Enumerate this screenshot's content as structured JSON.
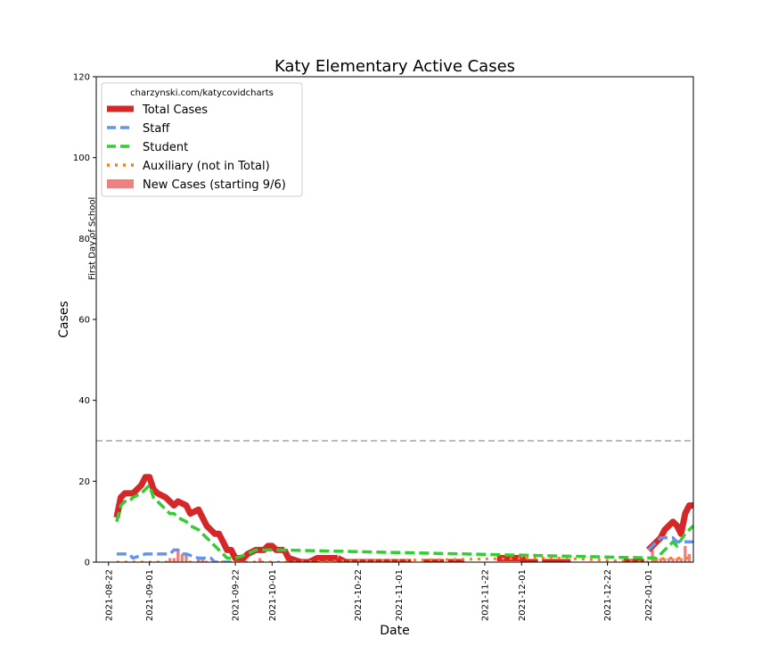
{
  "chart_data": {
    "type": "line",
    "title": "Katy Elementary Active Cases",
    "xlabel": "Date",
    "ylabel": "Cases",
    "ylim": [
      0,
      120
    ],
    "yticks": [
      0,
      20,
      40,
      60,
      80,
      100,
      120
    ],
    "xlim": [
      "2021-08-19",
      "2022-01-12"
    ],
    "xticks": [
      "2021-08-22",
      "2021-09-01",
      "2021-09-22",
      "2021-10-01",
      "2021-10-22",
      "2021-11-01",
      "2021-11-22",
      "2021-12-01",
      "2021-12-22",
      "2022-01-01"
    ],
    "legend_placement": "upper-left",
    "legend_source_text": "charzynski.com/katycovidcharts",
    "reference_lines": [
      {
        "orientation": "vertical",
        "x": "2021-08-18",
        "label": "First Day of School",
        "color": "#bbbbbb"
      },
      {
        "orientation": "horizontal",
        "y": 30,
        "label": "",
        "color": "#bbbbbb"
      }
    ],
    "series": [
      {
        "name": "Total Cases",
        "style": "solid",
        "color": "#d62728",
        "x": [
          "2021-08-24",
          "2021-08-25",
          "2021-08-26",
          "2021-08-27",
          "2021-08-28",
          "2021-08-30",
          "2021-08-31",
          "2021-09-01",
          "2021-09-02",
          "2021-09-03",
          "2021-09-05",
          "2021-09-06",
          "2021-09-07",
          "2021-09-08",
          "2021-09-10",
          "2021-09-11",
          "2021-09-13",
          "2021-09-14",
          "2021-09-15",
          "2021-09-16",
          "2021-09-17",
          "2021-09-18",
          "2021-09-19",
          "2021-09-20",
          "2021-09-21",
          "2021-09-22",
          "2021-09-23",
          "2021-09-24",
          "2021-09-25",
          "2021-09-27",
          "2021-09-28",
          "2021-09-29",
          "2021-09-30",
          "2021-10-01",
          "2021-10-02",
          "2021-10-03",
          "2021-10-04"
        ],
        "values": [
          11,
          16,
          17,
          17,
          17,
          19,
          21,
          21,
          18,
          17,
          16,
          15,
          14,
          15,
          14,
          12,
          13,
          11,
          9,
          8,
          7,
          7,
          5,
          3,
          3,
          1,
          1,
          1,
          2,
          3,
          3,
          3,
          4,
          4,
          3,
          3,
          3
        ],
        "segments": [
          {
            "x": [
              "2021-10-04",
              "2021-10-05",
              "2021-10-08",
              "2021-10-10",
              "2021-10-12",
              "2021-10-15",
              "2021-10-17"
            ],
            "values": [
              3,
              1,
              0,
              0,
              1,
              1,
              1
            ]
          },
          {
            "x": [
              "2021-10-17",
              "2021-10-19",
              "2021-10-22",
              "2021-10-25",
              "2021-10-28",
              "2021-11-01",
              "2021-11-04"
            ],
            "values": [
              1,
              0,
              0,
              0,
              0,
              0,
              0
            ]
          },
          {
            "x": [
              "2021-11-07",
              "2021-11-12"
            ],
            "values": [
              0,
              0
            ]
          },
          {
            "x": [
              "2021-11-13",
              "2021-11-17"
            ],
            "values": [
              0,
              0
            ]
          },
          {
            "x": [
              "2021-11-25",
              "2021-12-01"
            ],
            "values": [
              1,
              1
            ]
          },
          {
            "x": [
              "2021-12-01",
              "2021-12-02",
              "2021-12-05"
            ],
            "values": [
              1,
              0,
              0
            ]
          },
          {
            "x": [
              "2021-12-06",
              "2021-12-13"
            ],
            "values": [
              0,
              0
            ]
          },
          {
            "x": [
              "2021-12-26",
              "2021-12-31"
            ],
            "values": [
              0,
              0
            ]
          },
          {
            "x": [
              "2022-01-01",
              "2022-01-03",
              "2022-01-04",
              "2022-01-05",
              "2022-01-06",
              "2022-01-07",
              "2022-01-08",
              "2022-01-09",
              "2022-01-10",
              "2022-01-11",
              "2022-01-12"
            ],
            "values": [
              3,
              5,
              6,
              8,
              9,
              10,
              9,
              7,
              12,
              14,
              14
            ]
          }
        ]
      },
      {
        "name": "Staff",
        "style": "dashed",
        "color": "#6495ed",
        "x": [
          "2021-08-24",
          "2021-08-27",
          "2021-08-28",
          "2021-08-31",
          "2021-09-01",
          "2021-09-05",
          "2021-09-06",
          "2021-09-07",
          "2021-09-08",
          "2021-09-09",
          "2021-09-10",
          "2021-09-13",
          "2021-09-14",
          "2021-09-15",
          "2021-09-16",
          "2021-09-17",
          "2021-09-19",
          "2021-09-21",
          "2022-01-01",
          "2022-01-04",
          "2022-01-06",
          "2022-01-07",
          "2022-01-08",
          "2022-01-09",
          "2022-01-12"
        ],
        "values": [
          2,
          2,
          1,
          2,
          2,
          2,
          2,
          3,
          3,
          2,
          2,
          1,
          1,
          1,
          1,
          0,
          0,
          0,
          3,
          6,
          6,
          6,
          5,
          5,
          5
        ]
      },
      {
        "name": "Student",
        "style": "dashed",
        "color": "#32cd32",
        "x": [
          "2021-08-24",
          "2021-08-25",
          "2021-08-26",
          "2021-08-27",
          "2021-08-28",
          "2021-08-30",
          "2021-08-31",
          "2021-09-01",
          "2021-09-02",
          "2021-09-03",
          "2021-09-05",
          "2021-09-06",
          "2021-09-07",
          "2021-09-08",
          "2021-09-10",
          "2021-09-11",
          "2021-09-13",
          "2021-09-14",
          "2021-09-15",
          "2021-09-17",
          "2021-09-19",
          "2021-09-20",
          "2021-09-21",
          "2021-09-22",
          "2021-09-25",
          "2021-09-27",
          "2021-09-29",
          "2021-09-30",
          "2021-10-01",
          "2021-10-03",
          "2022-01-03",
          "2022-01-05",
          "2022-01-07",
          "2022-01-08",
          "2022-01-10",
          "2022-01-12"
        ],
        "values": [
          10,
          14,
          15,
          15,
          16,
          17,
          18,
          19,
          16,
          15,
          13,
          12,
          12,
          11,
          10,
          9,
          8,
          7,
          6,
          4,
          2,
          1,
          1,
          1,
          2,
          3,
          3,
          3,
          3,
          3,
          1,
          3,
          5,
          4,
          7,
          9
        ]
      },
      {
        "name": "Auxiliary (not in Total)",
        "style": "dotted",
        "color": "#ff7f0e",
        "x": [
          "2021-08-24",
          "2021-09-10",
          "2021-09-24",
          "2021-10-03",
          "2021-12-05",
          "2021-12-10",
          "2022-01-01",
          "2022-01-05",
          "2022-01-07",
          "2022-01-09",
          "2022-01-12"
        ],
        "values": [
          0,
          0,
          0,
          0,
          1,
          1,
          0,
          1,
          1,
          1,
          1
        ]
      },
      {
        "name": "New Cases (starting 9/6)",
        "style": "bar",
        "color": "#f08080",
        "x": [
          "2021-09-06",
          "2021-09-07",
          "2021-09-08",
          "2021-09-09",
          "2021-09-10",
          "2021-09-13",
          "2021-09-14",
          "2021-09-23",
          "2021-09-24",
          "2021-09-28",
          "2022-01-02",
          "2022-01-03",
          "2022-01-04",
          "2022-01-05",
          "2022-01-06",
          "2022-01-07",
          "2022-01-08",
          "2022-01-09",
          "2022-01-10",
          "2022-01-11"
        ],
        "values": [
          1,
          1,
          3,
          2,
          2,
          1,
          1,
          1,
          1,
          1,
          3,
          1,
          1,
          1,
          1,
          1,
          1,
          1,
          4,
          2
        ]
      }
    ]
  }
}
